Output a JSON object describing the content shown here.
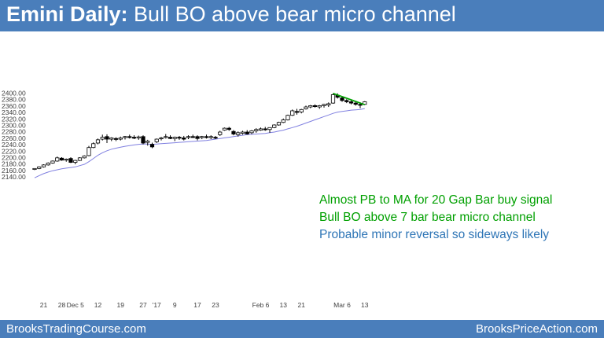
{
  "header": {
    "title_bold": "Emini Daily:",
    "title_rest": " Bull BO above bear micro channel",
    "bg_color": "#4a7ebb"
  },
  "footer": {
    "left": "BrooksTradingCourse.com",
    "right": "BrooksPriceAction.com"
  },
  "annotations": [
    {
      "text": "Almost PB to MA for 20 Gap Bar buy signal",
      "color": "#00a000"
    },
    {
      "text": "Bull BO above 7 bar bear micro channel",
      "color": "#00a000"
    },
    {
      "text": "Probable minor reversal so sideways likely",
      "color": "#2e75b6"
    }
  ],
  "chart_data": {
    "type": "candlestick",
    "title": "",
    "ylim": [
      2130,
      2410
    ],
    "y_ticks": [
      "2140.00",
      "2160.00",
      "2180.00",
      "2200.00",
      "2220.00",
      "2240.00",
      "2260.00",
      "2280.00",
      "2300.00",
      "2320.00",
      "2340.00",
      "2360.00",
      "2380.00",
      "2400.00"
    ],
    "x_ticks": [
      {
        "label": "21",
        "bar": 2
      },
      {
        "label": "28",
        "bar": 6
      },
      {
        "label": "Dec 5",
        "bar": 9
      },
      {
        "label": "12",
        "bar": 14
      },
      {
        "label": "19",
        "bar": 19
      },
      {
        "label": "27",
        "bar": 24
      },
      {
        "label": "'17",
        "bar": 27
      },
      {
        "label": "9",
        "bar": 31
      },
      {
        "label": "17",
        "bar": 36
      },
      {
        "label": "23",
        "bar": 40
      },
      {
        "label": "Feb 6",
        "bar": 50
      },
      {
        "label": "13",
        "bar": 55
      },
      {
        "label": "21",
        "bar": 59
      },
      {
        "label": "Mar 6",
        "bar": 68
      },
      {
        "label": "13",
        "bar": 73
      }
    ],
    "candles": [
      [
        2162,
        2166,
        2160,
        2165
      ],
      [
        2165,
        2172,
        2163,
        2170
      ],
      [
        2170,
        2178,
        2168,
        2176
      ],
      [
        2176,
        2184,
        2174,
        2182
      ],
      [
        2182,
        2190,
        2180,
        2188
      ],
      [
        2188,
        2202,
        2186,
        2198
      ],
      [
        2197,
        2200,
        2189,
        2191
      ],
      [
        2191,
        2196,
        2186,
        2194
      ],
      [
        2196,
        2200,
        2182,
        2184
      ],
      [
        2184,
        2192,
        2178,
        2190
      ],
      [
        2190,
        2200,
        2188,
        2198
      ],
      [
        2198,
        2206,
        2196,
        2204
      ],
      [
        2205,
        2235,
        2203,
        2230
      ],
      [
        2230,
        2246,
        2228,
        2242
      ],
      [
        2244,
        2258,
        2240,
        2254
      ],
      [
        2256,
        2270,
        2252,
        2262
      ],
      [
        2264,
        2271,
        2244,
        2256
      ],
      [
        2256,
        2262,
        2250,
        2260
      ],
      [
        2258,
        2262,
        2250,
        2256
      ],
      [
        2256,
        2264,
        2252,
        2260
      ],
      [
        2262,
        2266,
        2255,
        2264
      ],
      [
        2264,
        2270,
        2258,
        2262
      ],
      [
        2262,
        2268,
        2256,
        2260
      ],
      [
        2261,
        2267,
        2254,
        2263
      ],
      [
        2264,
        2268,
        2240,
        2244
      ],
      [
        2246,
        2254,
        2236,
        2250
      ],
      [
        2240,
        2245,
        2228,
        2232
      ],
      [
        2248,
        2258,
        2244,
        2256
      ],
      [
        2257,
        2263,
        2252,
        2260
      ],
      [
        2262,
        2272,
        2258,
        2264
      ],
      [
        2262,
        2268,
        2256,
        2258
      ],
      [
        2258,
        2264,
        2250,
        2262
      ],
      [
        2262,
        2266,
        2254,
        2260
      ],
      [
        2260,
        2266,
        2252,
        2256
      ],
      [
        2262,
        2268,
        2256,
        2264
      ],
      [
        2264,
        2270,
        2260,
        2263
      ],
      [
        2264,
        2268,
        2252,
        2258
      ],
      [
        2262,
        2266,
        2256,
        2264
      ],
      [
        2264,
        2270,
        2258,
        2262
      ],
      [
        2262,
        2268,
        2256,
        2264
      ],
      [
        2262,
        2266,
        2256,
        2260
      ],
      [
        2270,
        2282,
        2266,
        2278
      ],
      [
        2284,
        2292,
        2282,
        2290
      ],
      [
        2290,
        2294,
        2282,
        2286
      ],
      [
        2280,
        2284,
        2268,
        2272
      ],
      [
        2270,
        2280,
        2264,
        2276
      ],
      [
        2274,
        2282,
        2270,
        2278
      ],
      [
        2278,
        2284,
        2270,
        2272
      ],
      [
        2276,
        2284,
        2272,
        2282
      ],
      [
        2282,
        2290,
        2276,
        2286
      ],
      [
        2284,
        2292,
        2282,
        2288
      ],
      [
        2288,
        2294,
        2282,
        2285
      ],
      [
        2286,
        2292,
        2276,
        2292
      ],
      [
        2292,
        2302,
        2290,
        2300
      ],
      [
        2300,
        2310,
        2298,
        2308
      ],
      [
        2308,
        2320,
        2306,
        2316
      ],
      [
        2316,
        2332,
        2314,
        2330
      ],
      [
        2330,
        2348,
        2328,
        2344
      ],
      [
        2342,
        2350,
        2332,
        2340
      ],
      [
        2340,
        2350,
        2336,
        2348
      ],
      [
        2350,
        2360,
        2348,
        2356
      ],
      [
        2356,
        2362,
        2352,
        2360
      ],
      [
        2360,
        2364,
        2354,
        2358
      ],
      [
        2356,
        2362,
        2350,
        2360
      ],
      [
        2360,
        2366,
        2354,
        2364
      ],
      [
        2362,
        2370,
        2356,
        2366
      ],
      [
        2368,
        2398,
        2366,
        2394
      ],
      [
        2392,
        2398,
        2382,
        2386
      ],
      [
        2384,
        2388,
        2372,
        2376
      ],
      [
        2376,
        2380,
        2368,
        2372
      ],
      [
        2372,
        2376,
        2364,
        2368
      ],
      [
        2368,
        2372,
        2360,
        2364
      ],
      [
        2364,
        2370,
        2352,
        2362
      ],
      [
        2364,
        2374,
        2362,
        2372
      ]
    ],
    "moving_average": {
      "period": 20,
      "color": "#8080e0",
      "values": [
        2136,
        2143,
        2149,
        2154,
        2158,
        2161,
        2164,
        2166,
        2168,
        2170,
        2174,
        2178,
        2186,
        2196,
        2206,
        2214,
        2220,
        2225,
        2228,
        2231,
        2234,
        2236,
        2238,
        2240,
        2241,
        2241,
        2240,
        2241,
        2242,
        2243,
        2244,
        2245,
        2246,
        2247,
        2248,
        2249,
        2250,
        2251,
        2252,
        2254,
        2256,
        2258,
        2260,
        2262,
        2264,
        2266,
        2268,
        2270,
        2271,
        2272,
        2273,
        2274,
        2276,
        2278,
        2281,
        2284,
        2288,
        2292,
        2296,
        2301,
        2306,
        2311,
        2316,
        2321,
        2326,
        2331,
        2336,
        2340,
        2342,
        2344,
        2346,
        2347,
        2348,
        2351
      ]
    },
    "trendline": {
      "from": [
        66,
        2398
      ],
      "to": [
        73,
        2363
      ],
      "color": "#00a000"
    }
  }
}
